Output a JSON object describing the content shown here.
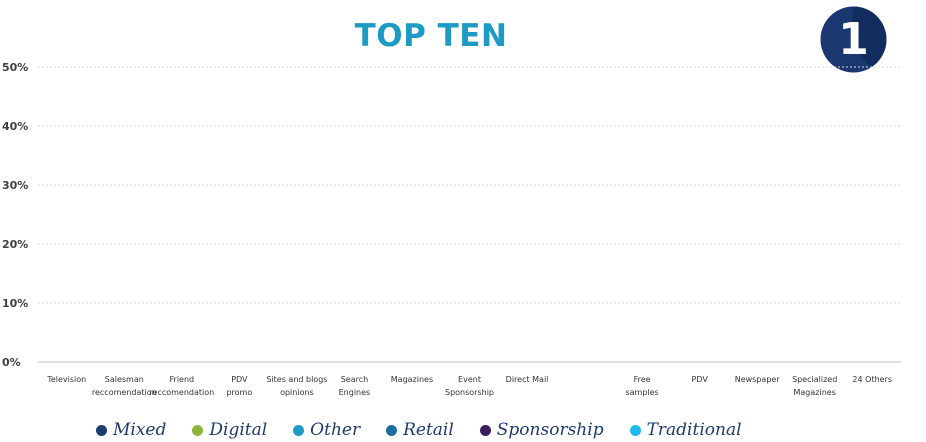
{
  "chart_data": {
    "type": "bar",
    "title": "TOP TEN",
    "badge": "1",
    "categories": [
      "Television",
      "Salesman reccomendation",
      "Friend reccomendation",
      "PDV promo",
      "Sites and blogs opinions",
      "Search Engines",
      "Magazines",
      "Event Sponsorship",
      "Direct Mail",
      "",
      "Free samples",
      "PDV",
      "Newspaper",
      "Specialized Magazines",
      "24 Others"
    ],
    "values": [
      0,
      0,
      0,
      0,
      0,
      0,
      0,
      0,
      0,
      0,
      0,
      0,
      0,
      0,
      0
    ],
    "ylim": [
      0,
      50
    ],
    "yticks": [
      "0%",
      "10%",
      "20%",
      "30%",
      "40%",
      "50%"
    ],
    "ytick_values": [
      0,
      10,
      20,
      30,
      40,
      50
    ],
    "grid": true,
    "legend_position": "bottom",
    "legend": [
      {
        "name": "Mixed",
        "color": "#1f3a6e"
      },
      {
        "name": "Digital",
        "color": "#8db43c"
      },
      {
        "name": "Other",
        "color": "#1d9bc4"
      },
      {
        "name": "Retail",
        "color": "#1a6fa0"
      },
      {
        "name": "Sponsorship",
        "color": "#3b1c5e"
      },
      {
        "name": "Traditional",
        "color": "#21b8ec"
      }
    ],
    "colors": {
      "title": "#1d9bc4",
      "badge": "#1a3770"
    }
  }
}
